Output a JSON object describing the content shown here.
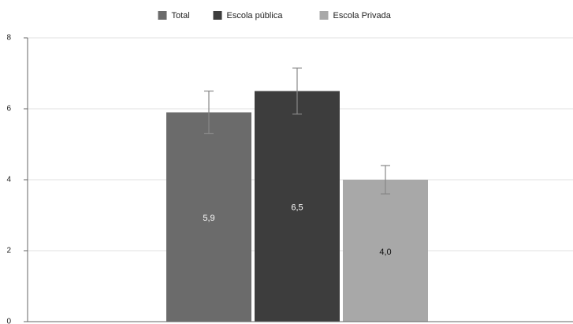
{
  "chart_data": {
    "type": "bar",
    "categories": [
      null
    ],
    "series": [
      {
        "name": "Total",
        "color": "#6b6b6b",
        "values": [
          5.9
        ],
        "value_labels": [
          "5,9"
        ],
        "errors": [
          0.6
        ]
      },
      {
        "name": "Escola pública",
        "color": "#3d3d3d",
        "values": [
          6.5
        ],
        "value_labels": [
          "6,5"
        ],
        "errors": [
          0.65
        ]
      },
      {
        "name": "Escola Privada",
        "color": "#a8a8a8",
        "values": [
          4.0
        ],
        "value_labels": [
          "4,0"
        ],
        "errors": [
          0.4
        ]
      }
    ],
    "ylim": [
      0,
      8
    ],
    "yticks": [
      0,
      2,
      4,
      6,
      8
    ],
    "grid": true,
    "legend": "top"
  }
}
